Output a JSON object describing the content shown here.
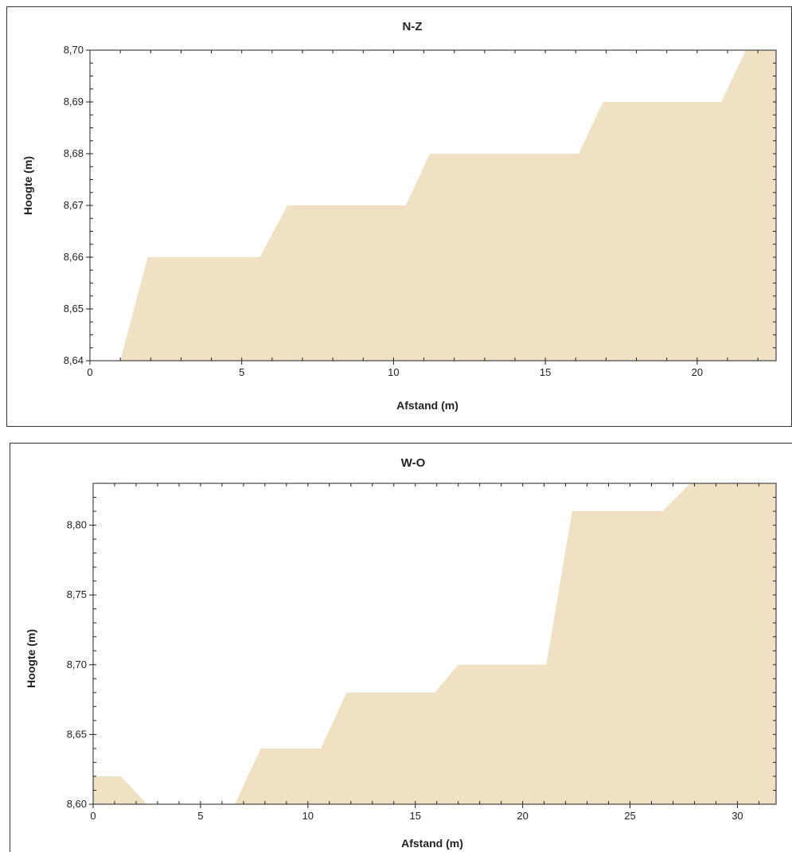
{
  "chart_data": [
    {
      "type": "area",
      "title": "N-Z",
      "xlabel": "Afstand (m)",
      "ylabel": "Hoogte (m)",
      "xlim": [
        0,
        22.6
      ],
      "ylim": [
        8.64,
        8.7
      ],
      "x_ticks": [
        0,
        5,
        10,
        15,
        20
      ],
      "x_tick_labels": [
        "0",
        "5",
        "10",
        "15",
        "20"
      ],
      "y_ticks": [
        8.64,
        8.65,
        8.66,
        8.67,
        8.68,
        8.69,
        8.7
      ],
      "y_tick_labels": [
        "8,64",
        "8,65",
        "8,66",
        "8,67",
        "8,68",
        "8,69",
        "8,70"
      ],
      "fill_color": "#f0e1c5",
      "series": [
        {
          "x": [
            1.0,
            1.9,
            5.6,
            6.5,
            10.4,
            11.2,
            16.1,
            16.9,
            20.8,
            21.6,
            22.6
          ],
          "y": [
            8.64,
            8.66,
            8.66,
            8.67,
            8.67,
            8.68,
            8.68,
            8.69,
            8.69,
            8.7,
            8.7
          ]
        }
      ]
    },
    {
      "type": "area",
      "title": "W-O",
      "xlabel": "Afstand (m)",
      "ylabel": "Hoogte (m)",
      "xlim": [
        0,
        31.8
      ],
      "ylim": [
        8.6,
        8.83
      ],
      "x_ticks": [
        0,
        5,
        10,
        15,
        20,
        25,
        30
      ],
      "x_tick_labels": [
        "0",
        "5",
        "10",
        "15",
        "20",
        "25",
        "30"
      ],
      "y_ticks": [
        8.6,
        8.65,
        8.7,
        8.75,
        8.8
      ],
      "y_tick_labels": [
        "8,60",
        "8,65",
        "8,70",
        "8,75",
        "8,80"
      ],
      "fill_color": "#f0e1c5",
      "series": [
        {
          "x": [
            0,
            1.3,
            2.2,
            2.5,
            6.6,
            7.8,
            10.6,
            11.8,
            15.9,
            17.0,
            21.1,
            22.3,
            26.5,
            27.8,
            31.8
          ],
          "y": [
            8.62,
            8.62,
            8.605,
            8.6,
            8.6,
            8.64,
            8.64,
            8.68,
            8.68,
            8.7,
            8.7,
            8.81,
            8.81,
            8.83,
            8.83
          ]
        }
      ]
    }
  ]
}
